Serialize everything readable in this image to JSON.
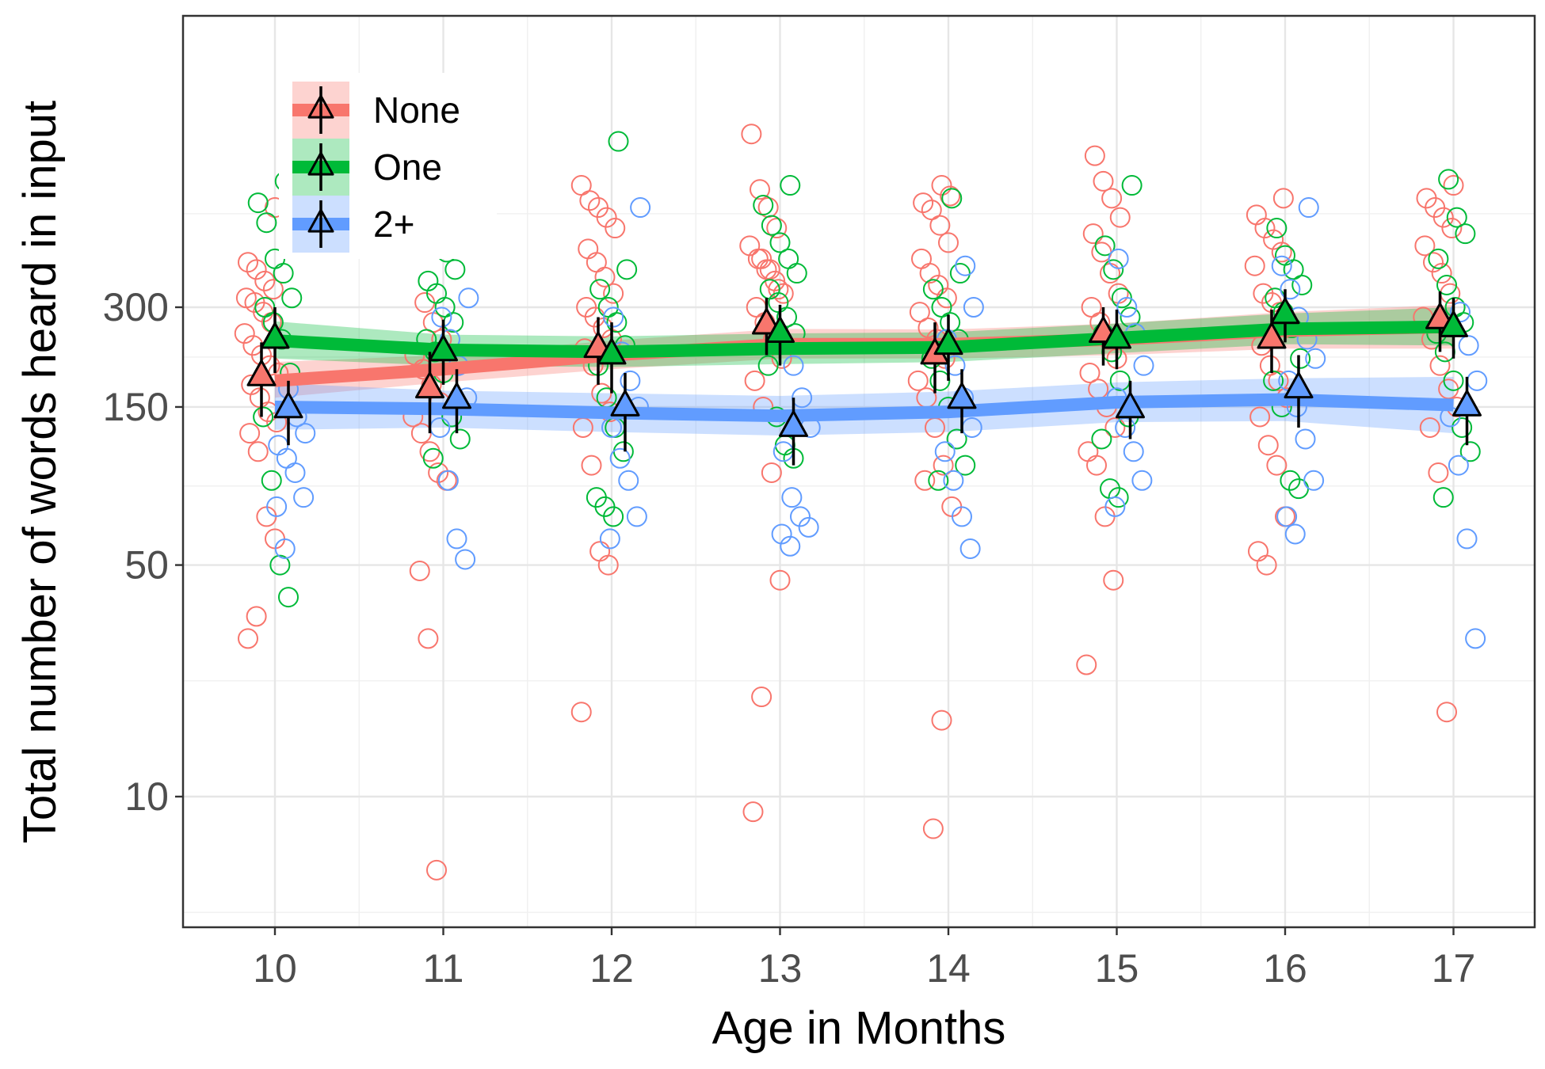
{
  "chart_data": {
    "type": "scatter",
    "title": "",
    "xlabel": "Age in Months",
    "ylabel": "Total number of words heard in input",
    "y_scale": "log",
    "x_ticks": [
      10,
      11,
      12,
      13,
      14,
      15,
      16,
      17
    ],
    "y_ticks": [
      10,
      50,
      150,
      300
    ],
    "xlim": [
      9.45,
      17.55
    ],
    "ylim": [
      5,
      1100
    ],
    "grid": true,
    "legend_position": "top-left",
    "series": [
      {
        "name": "None",
        "color": "#F8766D",
        "means": [
          {
            "x": 10,
            "y": 185,
            "lo": 140,
            "hi": 235
          },
          {
            "x": 11,
            "y": 170,
            "lo": 125,
            "hi": 220
          },
          {
            "x": 12,
            "y": 225,
            "lo": 175,
            "hi": 280
          },
          {
            "x": 13,
            "y": 265,
            "lo": 215,
            "hi": 320
          },
          {
            "x": 14,
            "y": 215,
            "lo": 165,
            "hi": 270
          },
          {
            "x": 15,
            "y": 250,
            "lo": 200,
            "hi": 300
          },
          {
            "x": 16,
            "y": 240,
            "lo": 190,
            "hi": 295
          },
          {
            "x": 17,
            "y": 275,
            "lo": 220,
            "hi": 335
          }
        ],
        "trend": [
          {
            "x": 10,
            "y": 180,
            "lo": 160,
            "hi": 205
          },
          {
            "x": 11,
            "y": 195,
            "lo": 178,
            "hi": 215
          },
          {
            "x": 12,
            "y": 215,
            "lo": 195,
            "hi": 238
          },
          {
            "x": 13,
            "y": 232,
            "lo": 210,
            "hi": 258
          },
          {
            "x": 14,
            "y": 232,
            "lo": 210,
            "hi": 257
          },
          {
            "x": 15,
            "y": 240,
            "lo": 215,
            "hi": 268
          },
          {
            "x": 16,
            "y": 255,
            "lo": 225,
            "hi": 290
          },
          {
            "x": 17,
            "y": 262,
            "lo": 225,
            "hi": 305
          }
        ],
        "points": [
          {
            "x": 10,
            "y": [
              35,
              30,
              60,
              70,
              110,
              125,
              135,
              145,
              160,
              175,
              190,
              200,
              215,
              230,
              250,
              270,
              290,
              310,
              320,
              340,
              360,
              390,
              410,
              600
            ]
          },
          {
            "x": 11,
            "y": [
              6,
              30,
              48,
              90,
              95,
              110,
              125,
              140,
              155,
              175,
              195,
              215,
              240,
              270,
              310
            ]
          },
          {
            "x": 12,
            "y": [
              18,
              50,
              55,
              100,
              130,
              145,
              165,
              200,
              225,
              240,
              260,
              280,
              300,
              330,
              370,
              410,
              450,
              520,
              560,
              600,
              630,
              700
            ]
          },
          {
            "x": 13,
            "y": [
              20,
              9,
              45,
              95,
              150,
              180,
              210,
              240,
              270,
              300,
              330,
              360,
              390,
              420,
              460,
              520,
              600,
              680,
              1000,
              340,
              390,
              420
            ]
          },
          {
            "x": 14,
            "y": [
              17,
              8,
              90,
              75,
              100,
              130,
              160,
              180,
              210,
              240,
              260,
              290,
              320,
              350,
              380,
              420,
              470,
              530,
              590,
              620,
              650,
              700
            ]
          },
          {
            "x": 15,
            "y": [
              25,
              45,
              70,
              100,
              110,
              130,
              150,
              170,
              190,
              210,
              240,
              270,
              300,
              330,
              380,
              440,
              500,
              560,
              640,
              720,
              860
            ]
          },
          {
            "x": 16,
            "y": [
              50,
              55,
              70,
              100,
              115,
              140,
              160,
              180,
              200,
              230,
              260,
              290,
              310,
              330,
              400,
              440,
              480,
              520,
              570,
              640
            ]
          },
          {
            "x": 17,
            "y": [
              18,
              95,
              130,
              150,
              170,
              200,
              240,
              280,
              330,
              380,
              410,
              460,
              520,
              560,
              600,
              640,
              700
            ]
          }
        ]
      },
      {
        "name": "One",
        "color": "#00BA38",
        "means": [
          {
            "x": 10,
            "y": 240,
            "lo": 190,
            "hi": 300
          },
          {
            "x": 11,
            "y": 220,
            "lo": 175,
            "hi": 275
          },
          {
            "x": 12,
            "y": 215,
            "lo": 165,
            "hi": 270
          },
          {
            "x": 13,
            "y": 250,
            "lo": 200,
            "hi": 305
          },
          {
            "x": 14,
            "y": 230,
            "lo": 180,
            "hi": 285
          },
          {
            "x": 15,
            "y": 240,
            "lo": 195,
            "hi": 295
          },
          {
            "x": 16,
            "y": 285,
            "lo": 235,
            "hi": 340
          },
          {
            "x": 17,
            "y": 260,
            "lo": 210,
            "hi": 320
          }
        ],
        "trend": [
          {
            "x": 10,
            "y": 238,
            "lo": 210,
            "hi": 272
          },
          {
            "x": 11,
            "y": 223,
            "lo": 200,
            "hi": 248
          },
          {
            "x": 12,
            "y": 220,
            "lo": 198,
            "hi": 245
          },
          {
            "x": 13,
            "y": 225,
            "lo": 202,
            "hi": 250
          },
          {
            "x": 14,
            "y": 227,
            "lo": 205,
            "hi": 252
          },
          {
            "x": 15,
            "y": 242,
            "lo": 218,
            "hi": 268
          },
          {
            "x": 16,
            "y": 258,
            "lo": 232,
            "hi": 287
          },
          {
            "x": 17,
            "y": 262,
            "lo": 230,
            "hi": 300
          }
        ],
        "points": [
          {
            "x": 10,
            "y": [
              40,
              50,
              90,
              140,
              190,
              240,
              270,
              300,
              320,
              380,
              420,
              540,
              620,
              720
            ]
          },
          {
            "x": 11,
            "y": [
              105,
              120,
              140,
              190,
              220,
              240,
              270,
              300,
              330,
              360,
              390,
              440,
              480
            ]
          },
          {
            "x": 12,
            "y": [
              70,
              75,
              80,
              110,
              130,
              160,
              200,
              230,
              270,
              300,
              340,
              390,
              950
            ]
          },
          {
            "x": 13,
            "y": [
              105,
              115,
              140,
              200,
              250,
              280,
              310,
              340,
              380,
              420,
              470,
              530,
              610,
              700
            ]
          },
          {
            "x": 14,
            "y": [
              90,
              100,
              120,
              150,
              180,
              210,
              240,
              270,
              300,
              340,
              380,
              640
            ]
          },
          {
            "x": 15,
            "y": [
              80,
              85,
              120,
              140,
              180,
              220,
              250,
              280,
              320,
              390,
              460,
              700
            ]
          },
          {
            "x": 16,
            "y": [
              85,
              90,
              150,
              180,
              210,
              260,
              290,
              320,
              350,
              390,
              430,
              520
            ]
          },
          {
            "x": 17,
            "y": [
              80,
              110,
              130,
              180,
              220,
              250,
              270,
              300,
              350,
              420,
              500,
              560,
              730
            ]
          }
        ]
      },
      {
        "name": "2+",
        "color": "#619CFF",
        "means": [
          {
            "x": 10,
            "y": 148,
            "lo": 115,
            "hi": 180
          },
          {
            "x": 11,
            "y": 158,
            "lo": 125,
            "hi": 195
          },
          {
            "x": 12,
            "y": 150,
            "lo": 110,
            "hi": 190
          },
          {
            "x": 13,
            "y": 130,
            "lo": 100,
            "hi": 160
          },
          {
            "x": 14,
            "y": 158,
            "lo": 125,
            "hi": 195
          },
          {
            "x": 15,
            "y": 148,
            "lo": 120,
            "hi": 180
          },
          {
            "x": 16,
            "y": 170,
            "lo": 130,
            "hi": 215
          },
          {
            "x": 17,
            "y": 150,
            "lo": 115,
            "hi": 185
          }
        ],
        "trend": [
          {
            "x": 10,
            "y": 150,
            "lo": 128,
            "hi": 177
          },
          {
            "x": 11,
            "y": 148,
            "lo": 130,
            "hi": 168
          },
          {
            "x": 12,
            "y": 144,
            "lo": 126,
            "hi": 165
          },
          {
            "x": 13,
            "y": 141,
            "lo": 123,
            "hi": 162
          },
          {
            "x": 14,
            "y": 145,
            "lo": 126,
            "hi": 167
          },
          {
            "x": 15,
            "y": 155,
            "lo": 135,
            "hi": 178
          },
          {
            "x": 16,
            "y": 158,
            "lo": 136,
            "hi": 183
          },
          {
            "x": 17,
            "y": 152,
            "lo": 125,
            "hi": 185
          }
        ],
        "points": [
          {
            "x": 10,
            "y": [
              56,
              75,
              80,
              95,
              105,
              115,
              125,
              140,
              170
            ]
          },
          {
            "x": 11,
            "y": [
              52,
              60,
              90,
              130,
              160,
              200,
              240,
              280,
              320
            ]
          },
          {
            "x": 12,
            "y": [
              60,
              70,
              90,
              105,
              130,
              150,
              180,
              220,
              280,
              600
            ]
          },
          {
            "x": 13,
            "y": [
              57,
              62,
              65,
              70,
              80,
              110,
              130,
              160,
              200
            ]
          },
          {
            "x": 14,
            "y": [
              56,
              70,
              90,
              110,
              130,
              160,
              200,
              240,
              300,
              400
            ]
          },
          {
            "x": 15,
            "y": [
              75,
              90,
              110,
              130,
              160,
              200,
              250,
              300,
              420
            ]
          },
          {
            "x": 16,
            "y": [
              62,
              70,
              90,
              120,
              150,
              180,
              210,
              240,
              280,
              340,
              400,
              600
            ]
          },
          {
            "x": 17,
            "y": [
              30,
              60,
              100,
              140,
              180,
              230,
              290
            ]
          }
        ]
      }
    ]
  }
}
